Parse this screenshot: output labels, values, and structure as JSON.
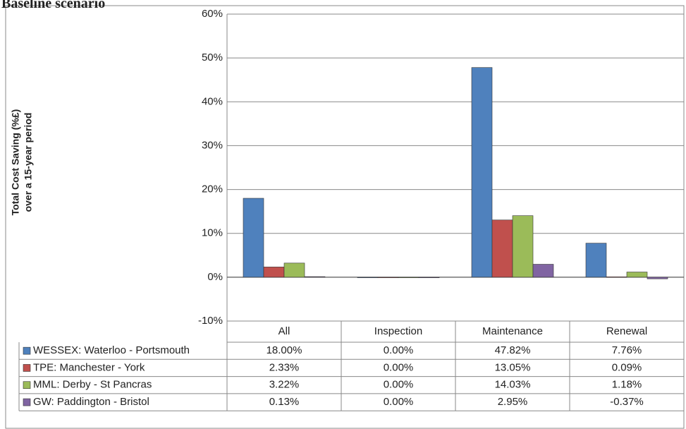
{
  "chart_data": {
    "type": "bar",
    "title": "Baseline scenario",
    "y_label": [
      "Total Cost Saving (%£)",
      "over a 15-year period"
    ],
    "categories": [
      "All",
      "Inspection",
      "Maintenance",
      "Renewal"
    ],
    "series": [
      {
        "name": "WESSEX: Waterloo - Portsmouth",
        "color": "#4f81bd",
        "values": [
          18.0,
          0.0,
          47.82,
          7.76
        ],
        "value_labels": [
          "18.00%",
          "0.00%",
          "47.82%",
          "7.76%"
        ]
      },
      {
        "name": "TPE: Manchester - York",
        "color": "#c0504d",
        "values": [
          2.33,
          0.0,
          13.05,
          0.09
        ],
        "value_labels": [
          "2.33%",
          "0.00%",
          "13.05%",
          "0.09%"
        ]
      },
      {
        "name": "MML: Derby - St Pancras",
        "color": "#9bbb59",
        "values": [
          3.22,
          0.0,
          14.03,
          1.18
        ],
        "value_labels": [
          "3.22%",
          "0.00%",
          "14.03%",
          "1.18%"
        ]
      },
      {
        "name": "GW: Paddington - Bristol",
        "color": "#8064a2",
        "values": [
          0.13,
          0.0,
          2.95,
          -0.37
        ],
        "value_labels": [
          "0.13%",
          "0.00%",
          "2.95%",
          "-0.37%"
        ]
      }
    ],
    "ylim": [
      -10,
      60
    ],
    "yticks": [
      {
        "value": -10,
        "label": "-10%"
      },
      {
        "value": 0,
        "label": "0%"
      },
      {
        "value": 10,
        "label": "10%"
      },
      {
        "value": 20,
        "label": "20%"
      },
      {
        "value": 30,
        "label": "30%"
      },
      {
        "value": 40,
        "label": "40%"
      },
      {
        "value": 50,
        "label": "50%"
      },
      {
        "value": 60,
        "label": "60%"
      }
    ],
    "grid": true
  }
}
